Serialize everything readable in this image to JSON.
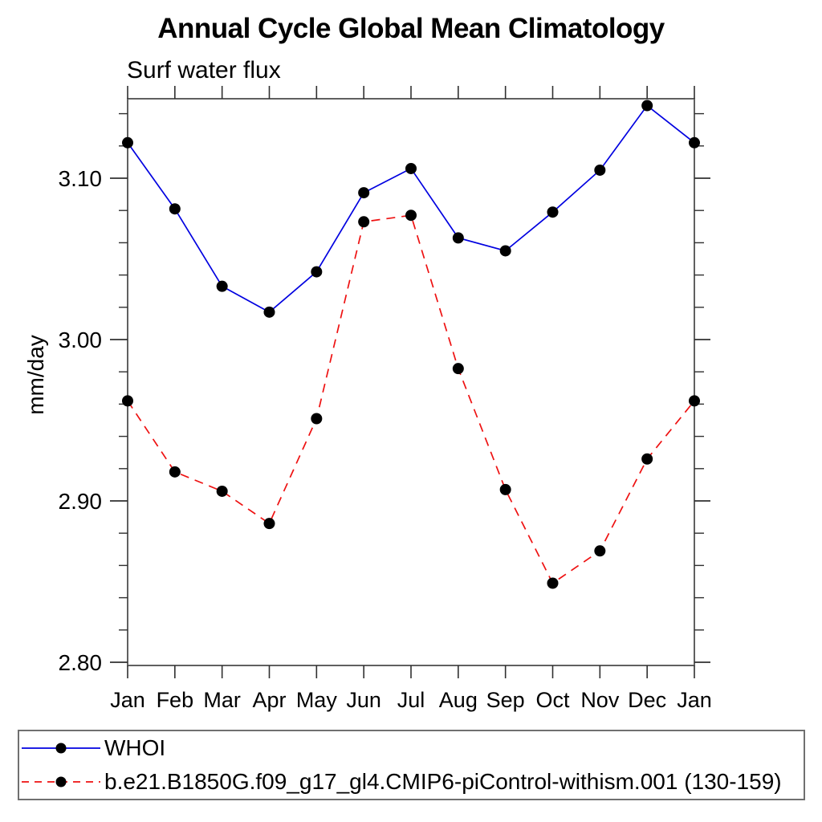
{
  "chart_data": {
    "type": "line",
    "title": "Annual Cycle Global Mean Climatology",
    "subtitle": "Surf water flux",
    "ylabel": "mm/day",
    "xlabel": "",
    "x_categories": [
      "Jan",
      "Feb",
      "Mar",
      "Apr",
      "May",
      "Jun",
      "Jul",
      "Aug",
      "Sep",
      "Oct",
      "Nov",
      "Dec",
      "Jan"
    ],
    "series": [
      {
        "name": "WHOI",
        "color": "#0000e0",
        "line_style": "solid",
        "marker": "filled-circle",
        "marker_color": "#000000",
        "values": [
          3.122,
          3.081,
          3.033,
          3.017,
          3.042,
          3.091,
          3.106,
          3.063,
          3.055,
          3.079,
          3.105,
          3.145,
          3.122
        ]
      },
      {
        "name": "b.e21.B1850G.f09_g17_gl4.CMIP6-piControl-withism.001 (130-159)",
        "color": "#ee1111",
        "line_style": "dashed",
        "marker": "filled-circle",
        "marker_color": "#000000",
        "values": [
          2.962,
          2.918,
          2.906,
          2.886,
          2.951,
          3.073,
          3.077,
          2.982,
          2.907,
          2.849,
          2.869,
          2.926,
          2.962
        ]
      }
    ],
    "ylim": [
      2.798,
      3.149
    ],
    "y_major_ticks": [
      "2.80",
      "2.90",
      "3.00",
      "3.10"
    ],
    "y_minor_tick_step": 0.02,
    "grid": false,
    "legend_position": "bottom-box",
    "axis_color": "#606060",
    "tick_color": "#303030",
    "text_color": "#000000"
  }
}
